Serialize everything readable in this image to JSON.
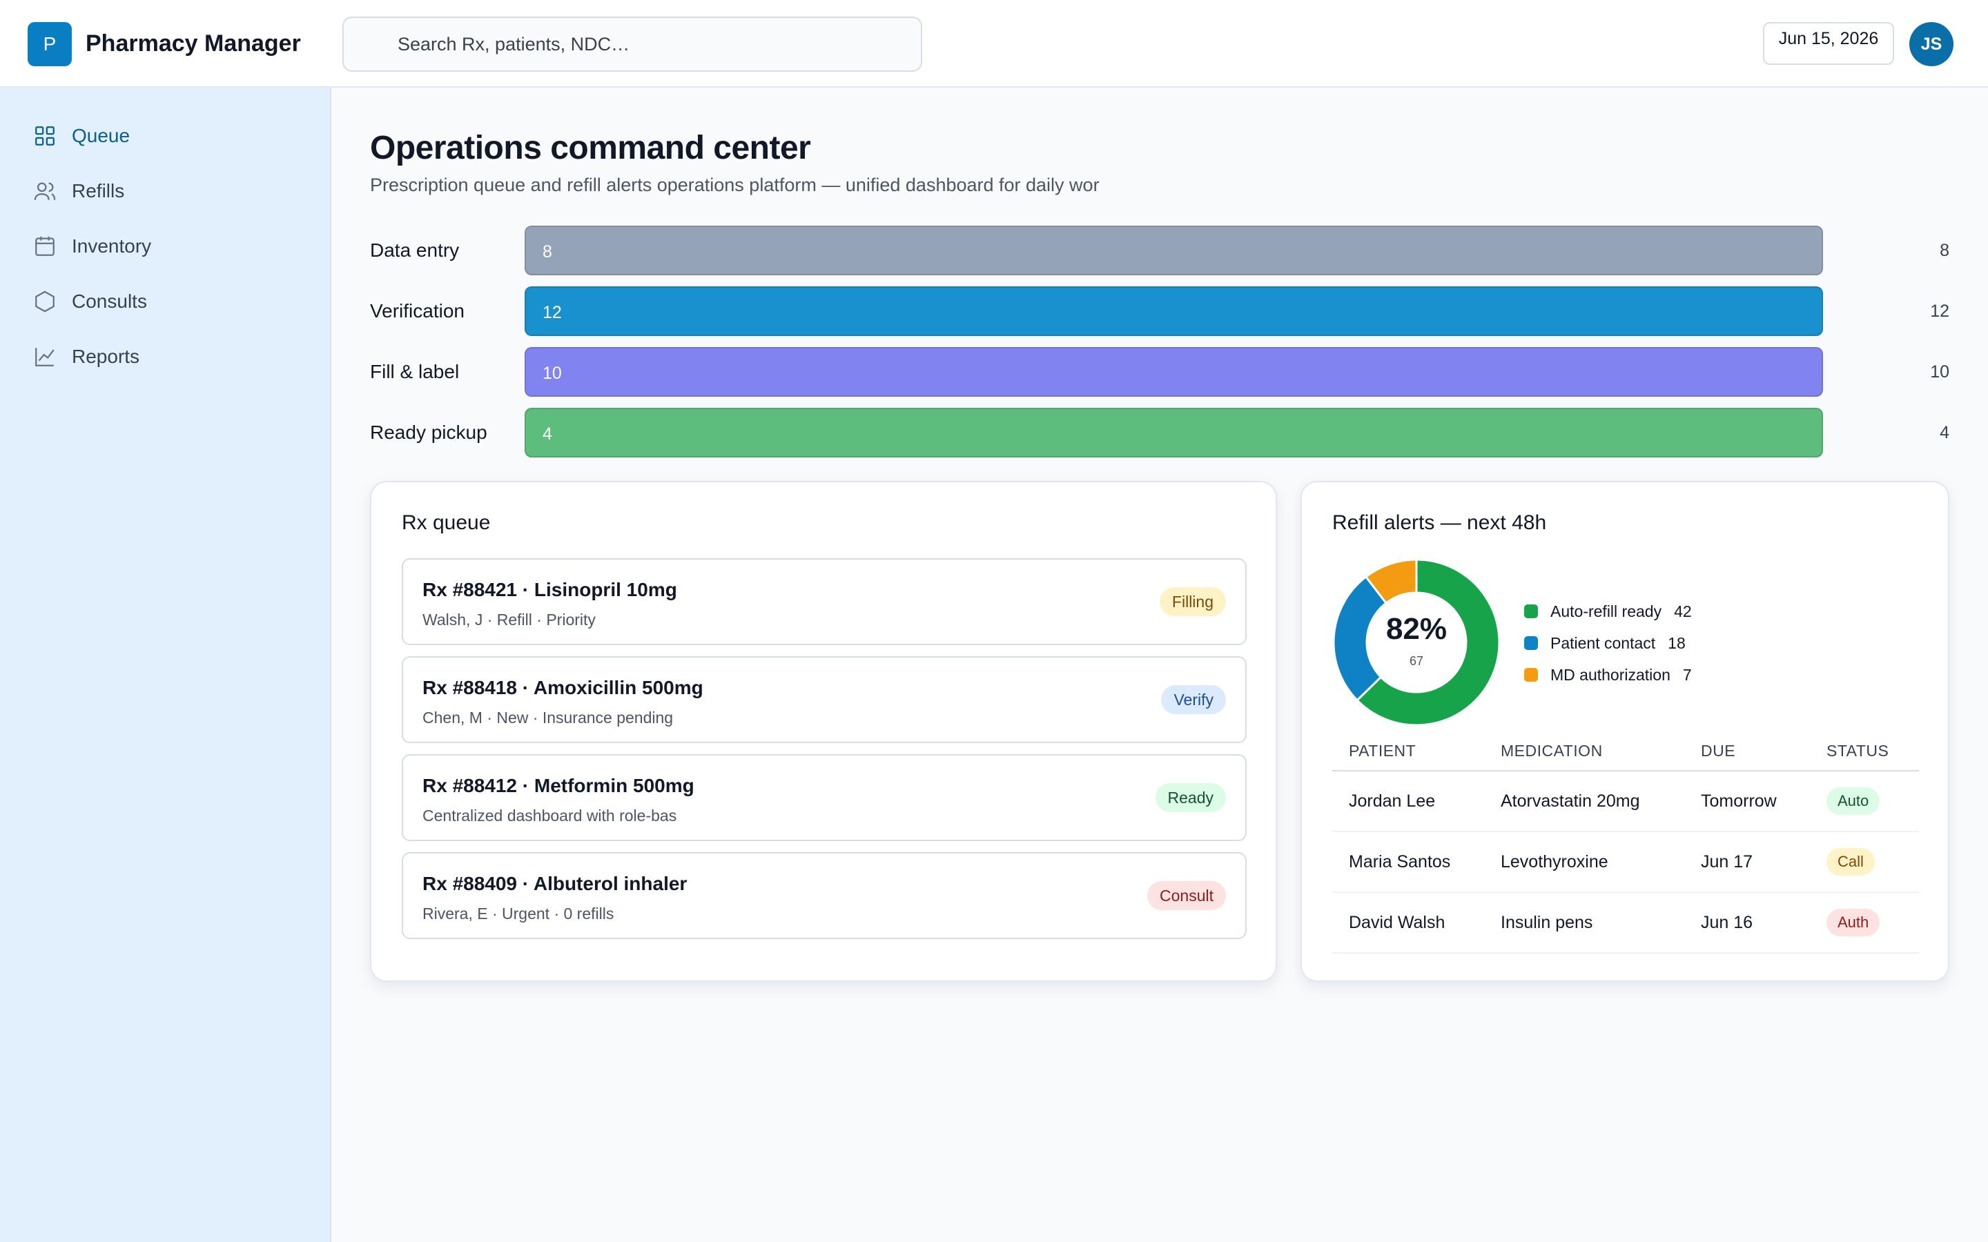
{
  "app": {
    "logo_letter": "P",
    "title": "Pharmacy Manager"
  },
  "header": {
    "search_placeholder": "Search Rx, patients, NDC…",
    "date": "Jun 15, 2026",
    "avatar_initials": "JS"
  },
  "sidebar": {
    "items": [
      {
        "label": "Queue",
        "icon": "grid-icon",
        "active": true
      },
      {
        "label": "Refills",
        "icon": "users-icon",
        "active": false
      },
      {
        "label": "Inventory",
        "icon": "calendar-icon",
        "active": false
      },
      {
        "label": "Consults",
        "icon": "hexagon-icon",
        "active": false
      },
      {
        "label": "Reports",
        "icon": "line-chart-icon",
        "active": false
      }
    ]
  },
  "main": {
    "title": "Operations command center",
    "subtitle": "Prescription queue and refill alerts operations platform — unified dashboard for daily wor",
    "stages": [
      {
        "label": "Data entry",
        "value": 8,
        "count": "8",
        "bar_text": "8",
        "color": "#94a3b8"
      },
      {
        "label": "Verification",
        "value": 12,
        "count": "12",
        "bar_text": "12",
        "color": "#1a91cf"
      },
      {
        "label": "Fill & label",
        "value": 10,
        "count": "10",
        "bar_text": "10",
        "color": "#8183f1"
      },
      {
        "label": "Ready pickup",
        "value": 4,
        "count": "4",
        "bar_text": "4",
        "color": "#5cbd7c"
      }
    ],
    "stage_fill_fraction": 1.0
  },
  "rx_queue": {
    "title": "Rx queue",
    "items": [
      {
        "title": "Rx #88421 · Lisinopril 10mg",
        "sub": "Walsh, J · Refill · Priority",
        "status": "Filling",
        "status_bg": "#fdf3c7",
        "status_fg": "#7a4a06"
      },
      {
        "title": "Rx #88418 · Amoxicillin 500mg",
        "sub": "Chen, M · New · Insurance pending",
        "status": "Verify",
        "status_bg": "#dbeafe",
        "status_fg": "#1e4f8f"
      },
      {
        "title": "Rx #88412 · Metformin 500mg",
        "sub": "Centralized dashboard with role-bas",
        "status": "Ready",
        "status_bg": "#dcfce7",
        "status_fg": "#14532d"
      },
      {
        "title": "Rx #88409 · Albuterol inhaler",
        "sub": "Rivera, E · Urgent · 0 refills",
        "status": "Consult",
        "status_bg": "#fde2e2",
        "status_fg": "#8b1c1c"
      }
    ]
  },
  "refill_alerts": {
    "title": "Refill alerts — next 48h",
    "donut": {
      "percent": "82%",
      "total": "67",
      "segments": [
        {
          "label": "Auto-refill ready",
          "value": 42,
          "color": "#17a34a"
        },
        {
          "label": "Patient contact",
          "value": 18,
          "color": "#0f82c5"
        },
        {
          "label": "MD authorization",
          "value": 7,
          "color": "#f39c12"
        }
      ]
    },
    "table": {
      "headers": [
        "PATIENT",
        "MEDICATION",
        "DUE",
        "STATUS"
      ],
      "rows": [
        {
          "patient": "Jordan Lee",
          "medication": "Atorvastatin 20mg",
          "due": "Tomorrow",
          "status": "Auto",
          "status_bg": "#dcfce7",
          "status_fg": "#14532d"
        },
        {
          "patient": "Maria Santos",
          "medication": "Levothyroxine",
          "due": "Jun 17",
          "status": "Call",
          "status_bg": "#fdf3c7",
          "status_fg": "#7a4a06"
        },
        {
          "patient": "David Walsh",
          "medication": "Insulin pens",
          "due": "Jun 16",
          "status": "Auth",
          "status_bg": "#fde2e2",
          "status_fg": "#8b1c1c"
        }
      ]
    }
  }
}
